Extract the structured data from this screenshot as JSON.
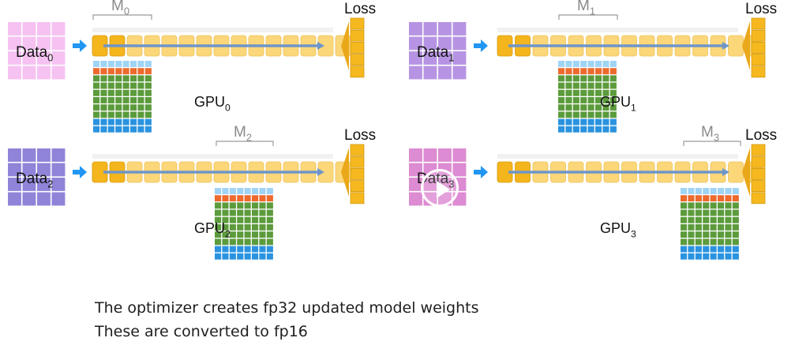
{
  "colors": {
    "data_pink": "#f6c2f2",
    "data_purple": "#b694e3",
    "data_indigo": "#8f84d8",
    "data_magenta": "#dd8bd2",
    "arrow_blue": "#2196f3",
    "layer_dark": "#f4b51d",
    "layer_light": "#fbd77a",
    "loss_gold": "#f6b81f",
    "grid_light_blue": "#9fd4f4",
    "grid_orange": "#ec6a2c",
    "grid_green": "#5c9b3c",
    "grid_blue": "#2a93e0"
  },
  "quadrants": [
    {
      "data_label": "Data",
      "data_sub": "0",
      "model_label": "M",
      "model_sub": "0",
      "gpu_label": "GPU",
      "gpu_sub": "0",
      "loss_label": "Loss",
      "data_color": "data_pink",
      "gpu_label_over_grid": false
    },
    {
      "data_label": "Data",
      "data_sub": "1",
      "model_label": "M",
      "model_sub": "1",
      "gpu_label": "GPU",
      "gpu_sub": "1",
      "loss_label": "Loss",
      "data_color": "data_purple",
      "gpu_label_over_grid": true
    },
    {
      "data_label": "Data",
      "data_sub": "2",
      "model_label": "M",
      "model_sub": "2",
      "gpu_label": "GPU",
      "gpu_sub": "2",
      "loss_label": "Loss",
      "data_color": "data_indigo",
      "gpu_label_over_grid": true
    },
    {
      "data_label": "Data",
      "data_sub": "3",
      "model_label": "M",
      "model_sub": "3",
      "gpu_label": "GPU",
      "gpu_sub": "3",
      "loss_label": "Loss",
      "data_color": "data_magenta",
      "gpu_label_over_grid": false
    }
  ],
  "caption": {
    "line1": "The optimizer creates fp32 updated model weights",
    "line2": "These are converted to fp16"
  },
  "video": {
    "play_icon": "play-circle-icon"
  }
}
